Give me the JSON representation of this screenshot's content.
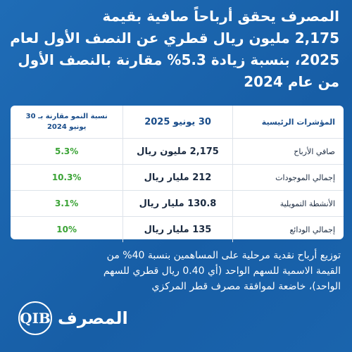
{
  "headline": {
    "lines": [
      "المصرف يحقق أرباحاً صافية بقيمة",
      "2,175 مليون ريال قطري عن النصف الأول لعام",
      "2025، بنسبة زيادة 5.3% مقارنة بالنصف الأول",
      "من عام 2024"
    ]
  },
  "table": {
    "headers": [
      "المؤشرات الرئيسية",
      "30 يونيو 2025",
      "نسبة النمو مقارنة بـ 30 يونيو 2024"
    ],
    "rows": [
      [
        "صافي الأرباح",
        "2,175 مليون ريال",
        "5.3%"
      ],
      [
        "إجمالي الموجودات",
        "212 مليار ريال",
        "10.3%"
      ],
      [
        "الأنشطة التمويلية",
        "130.8 مليار ريال",
        "3.1%"
      ],
      [
        "إجمالي الودائع",
        "135 مليار ريال",
        "10%"
      ]
    ]
  },
  "footer": {
    "lines": [
      "توزيع أرباح نقدية مرحلية على المساهمين بنسبة 40% من",
      "القيمة الاسمية للسهم الواحد (أي 0.40 ريال قطري للسهم",
      "الواحد)، خاضعة لموافقة مصرف قطر المركزي"
    ]
  },
  "logo": {
    "mark": "QIB",
    "name": "المصرف"
  }
}
